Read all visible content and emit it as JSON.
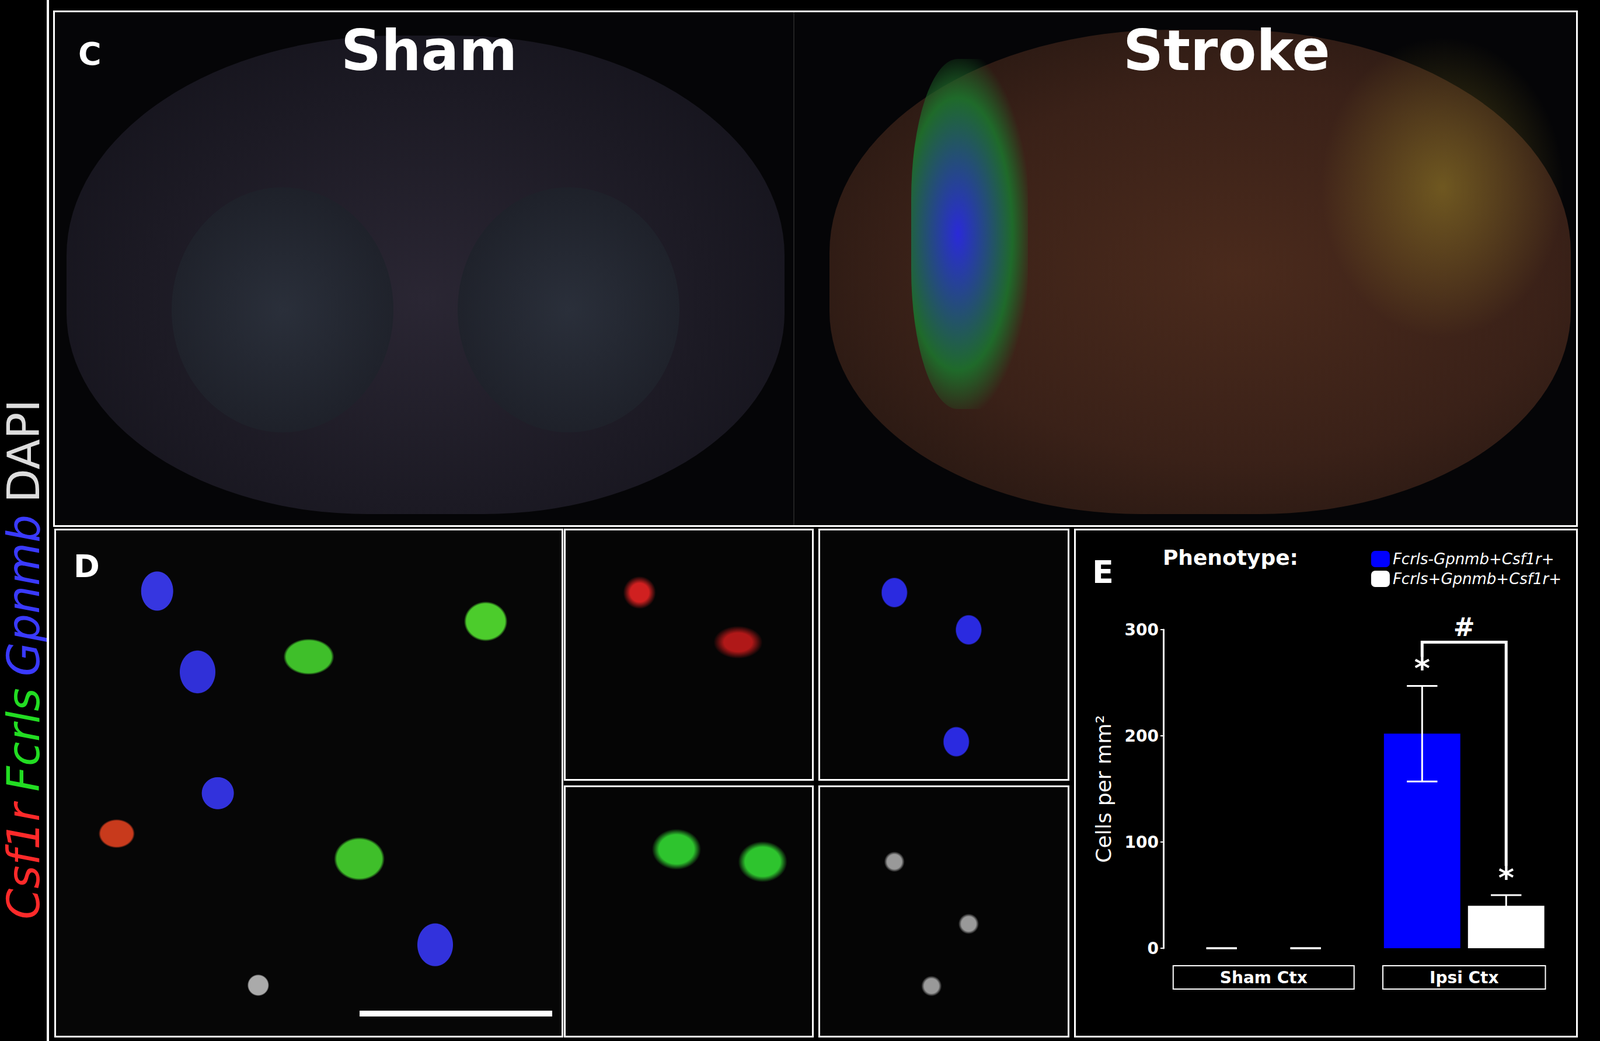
{
  "figure": {
    "panel_c": {
      "label": "C",
      "left_title": "Sham",
      "right_title": "Stroke"
    },
    "panel_d": {
      "label": "D"
    },
    "panel_e": {
      "label": "E"
    },
    "stain_labels": [
      {
        "text": "Csf1r",
        "color": "#ff2a2a",
        "italic": true
      },
      {
        "text": "Fcrls",
        "color": "#22dd22",
        "italic": true
      },
      {
        "text": "Gpnmb",
        "color": "#3a3aff",
        "italic": true
      },
      {
        "text": "DAPI",
        "color": "#dddddd",
        "italic": false
      }
    ]
  },
  "chart_data": {
    "type": "bar",
    "categories": [
      "Sham Ctx",
      "Ipsi Ctx"
    ],
    "series": [
      {
        "name": "Fcrls-Gpnmb+Csf1r+",
        "color": "#0000ff",
        "values": [
          0,
          202
        ],
        "error": [
          0,
          45
        ]
      },
      {
        "name": "Fcrls+Gpnmb+Csf1r+",
        "color": "#ffffff",
        "values": [
          0,
          40
        ],
        "error": [
          0,
          10
        ]
      }
    ],
    "ylabel": "Cells per mm²",
    "legend_title": "Phenotype:",
    "legend": "upper right",
    "ylim": [
      0,
      300
    ],
    "yticks": [
      0,
      100,
      200,
      300
    ],
    "grid": false,
    "annotations": [
      {
        "text": "*",
        "category": "Ipsi Ctx",
        "series": "Fcrls-Gpnmb+Csf1r+"
      },
      {
        "text": "*",
        "category": "Ipsi Ctx",
        "series": "Fcrls+Gpnmb+Csf1r+"
      },
      {
        "text": "#",
        "category": "Ipsi Ctx",
        "between": [
          "Fcrls-Gpnmb+Csf1r+",
          "Fcrls+Gpnmb+Csf1r+"
        ]
      }
    ]
  }
}
